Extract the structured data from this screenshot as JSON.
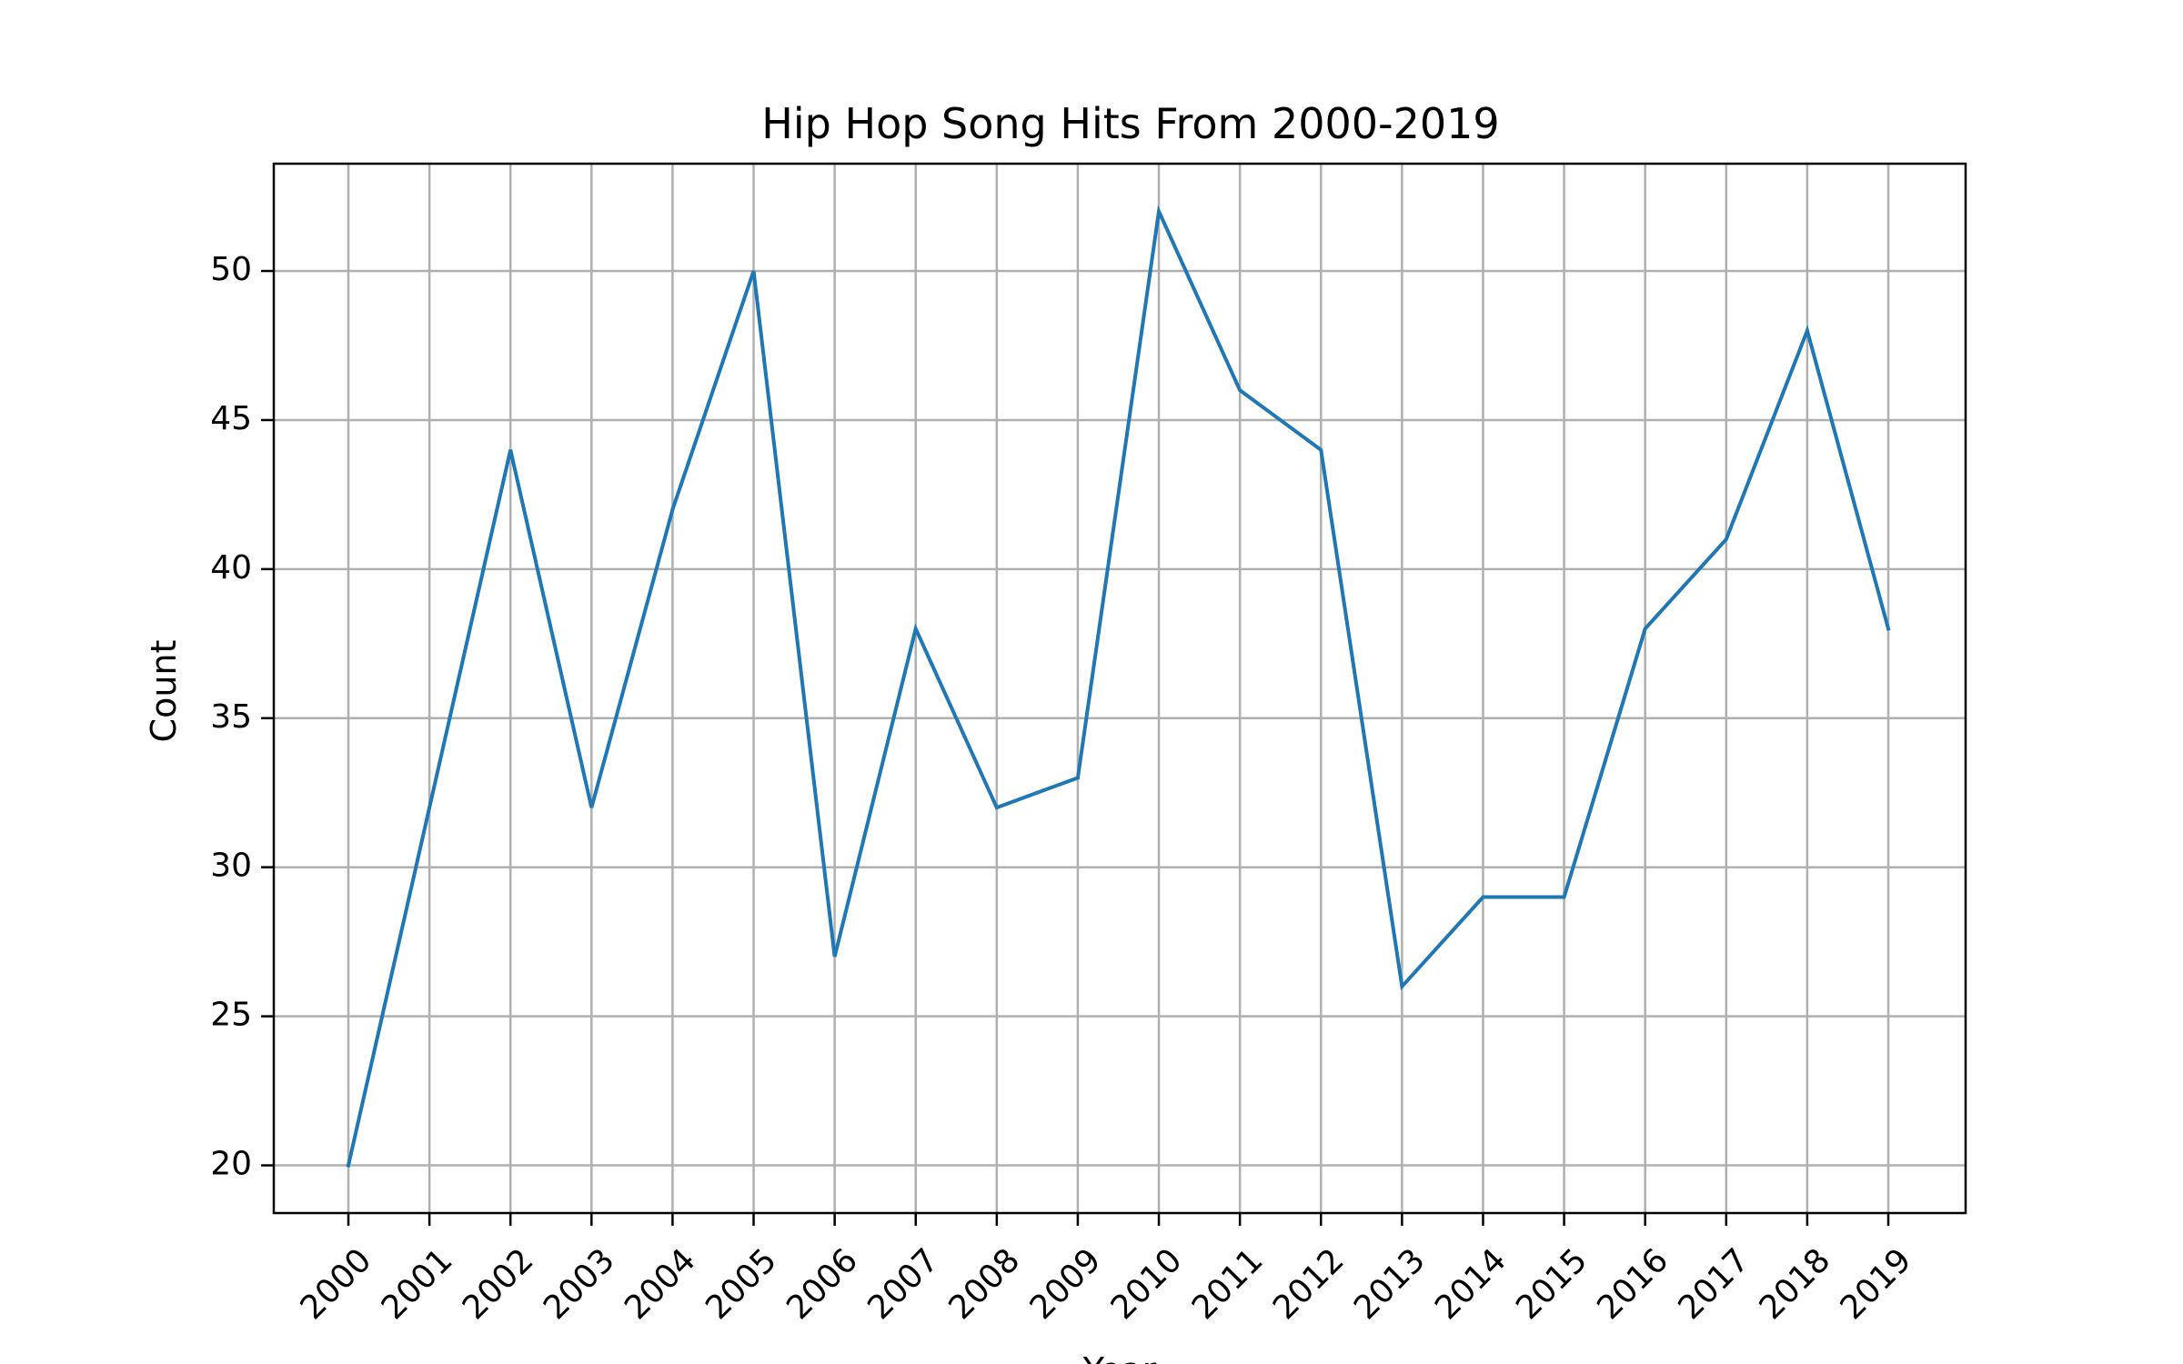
{
  "chart_data": {
    "type": "line",
    "title": "Hip Hop Song Hits From 2000-2019",
    "xlabel": "Year",
    "ylabel": "Count",
    "categories": [
      "2000",
      "2001",
      "2002",
      "2003",
      "2004",
      "2005",
      "2006",
      "2007",
      "2008",
      "2009",
      "2010",
      "2011",
      "2012",
      "2013",
      "2014",
      "2015",
      "2016",
      "2017",
      "2018",
      "2019"
    ],
    "series": [
      {
        "values": [
          20,
          32,
          44,
          32,
          42,
          50,
          27,
          38,
          32,
          33,
          52,
          46,
          44,
          26,
          29,
          29,
          38,
          41,
          48,
          38
        ],
        "color": "#1f77b4"
      }
    ],
    "ylim": [
      18.4,
      53.6
    ],
    "yticks": [
      20,
      25,
      30,
      35,
      40,
      45,
      50
    ],
    "ytick_labels": [
      "20",
      "25",
      "30",
      "35",
      "40",
      "45",
      "50"
    ],
    "grid": true,
    "grid_color": "#b0b0b0",
    "legend": null
  }
}
